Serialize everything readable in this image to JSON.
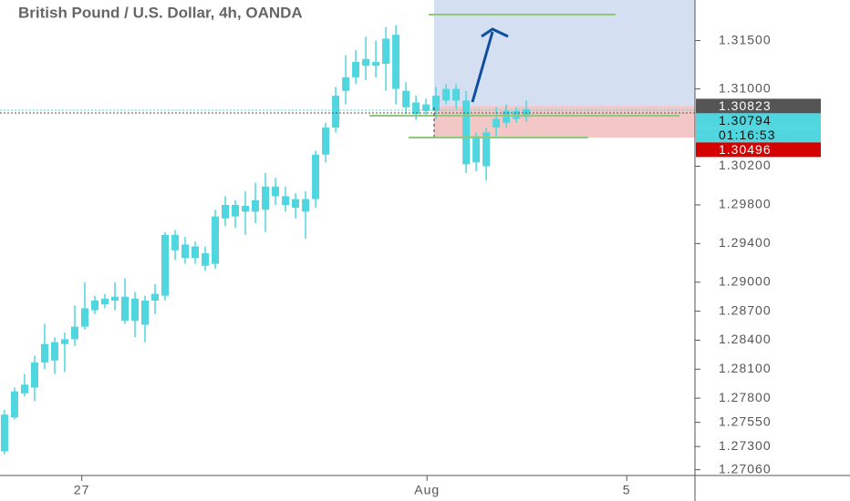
{
  "chart_data": {
    "type": "candlestick",
    "title": "British Pound / U.S. Dollar, 4h, OANDA",
    "x": [
      0,
      1,
      2,
      3,
      4,
      5,
      6,
      7,
      8,
      9,
      10,
      11,
      12,
      13,
      14,
      15,
      16,
      17,
      18,
      19,
      20,
      21,
      22,
      23,
      24,
      25,
      26,
      27,
      28,
      29,
      30,
      31,
      32,
      33,
      34,
      35,
      36,
      37,
      38,
      39,
      40,
      41,
      42,
      43,
      44,
      45,
      46,
      47,
      48,
      49,
      50,
      51,
      52
    ],
    "open": [
      1.2725,
      1.276,
      1.2785,
      1.2791,
      1.2817,
      1.2838,
      1.2836,
      1.2841,
      1.2854,
      1.2871,
      1.2877,
      1.2881,
      1.2885,
      1.286,
      1.2881,
      1.2881,
      1.2886,
      1.2949,
      1.2939,
      1.2925,
      1.293,
      1.2919,
      1.2966,
      1.298,
      1.2973,
      1.2973,
      1.2975,
      1.2999,
      1.2989,
      1.2977,
      1.2986,
      1.2986,
      1.3032,
      1.306,
      1.3098,
      1.3112,
      1.3131,
      1.3124,
      1.3126,
      1.3156,
      1.3098,
      1.3086,
      1.3077,
      1.3077,
      1.3088,
      1.31,
      1.3088,
      1.3024,
      1.302,
      1.306,
      1.3065,
      1.3077,
      1.3071
    ],
    "high": [
      1.2768,
      1.2791,
      1.2805,
      1.2824,
      1.2857,
      1.2843,
      1.2848,
      1.2876,
      1.29,
      1.2886,
      1.2888,
      1.29,
      1.2904,
      1.289,
      1.2886,
      1.2898,
      1.2952,
      1.2954,
      1.2947,
      1.2942,
      1.2937,
      1.2975,
      1.2989,
      1.2985,
      1.2994,
      1.3003,
      1.3013,
      1.3008,
      1.2999,
      1.2992,
      1.2994,
      1.3036,
      1.3065,
      1.3102,
      1.3135,
      1.314,
      1.3154,
      1.315,
      1.3164,
      1.3166,
      1.3107,
      1.3093,
      1.309,
      1.3102,
      1.3105,
      1.3105,
      1.3098,
      1.3055,
      1.306,
      1.3081,
      1.3084,
      1.3081,
      1.3088
    ],
    "low": [
      1.2722,
      1.2758,
      1.2782,
      1.2777,
      1.281,
      1.2805,
      1.2807,
      1.2834,
      1.2851,
      1.2867,
      1.2873,
      1.2871,
      1.2857,
      1.2843,
      1.2838,
      1.2867,
      1.2881,
      1.2923,
      1.2919,
      1.2919,
      1.2912,
      1.2914,
      1.2958,
      1.2956,
      1.2949,
      1.2961,
      1.2952,
      1.298,
      1.2973,
      1.2966,
      1.2945,
      1.2977,
      1.3024,
      1.3055,
      1.3084,
      1.3105,
      1.3109,
      1.3112,
      1.3098,
      1.3084,
      1.3074,
      1.3068,
      1.3071,
      1.3069,
      1.3084,
      1.3079,
      1.3013,
      1.3015,
      1.3005,
      1.3051,
      1.306,
      1.3065,
      1.3066
    ],
    "close": [
      1.2763,
      1.2787,
      1.2794,
      1.2817,
      1.2836,
      1.2819,
      1.2841,
      1.2854,
      1.2873,
      1.2881,
      1.2883,
      1.2885,
      1.286,
      1.2883,
      1.2856,
      1.2888,
      1.2949,
      1.2933,
      1.2925,
      1.2937,
      1.2917,
      1.2968,
      1.298,
      1.2968,
      1.2979,
      1.2985,
      1.2999,
      1.2989,
      1.298,
      1.2986,
      1.2973,
      1.3032,
      1.306,
      1.3093,
      1.3112,
      1.3128,
      1.3124,
      1.3128,
      1.3152,
      1.31,
      1.3081,
      1.3074,
      1.3084,
      1.3093,
      1.31,
      1.3088,
      1.3022,
      1.3051,
      1.3055,
      1.3069,
      1.3077,
      1.3069,
      1.3079
    ],
    "color": "#4fd6df",
    "xlim": [
      -0.45,
      68.8
    ],
    "xticks": [
      {
        "value": 7.7,
        "label": "27"
      },
      {
        "value": 42.1,
        "label": "Aug"
      },
      {
        "value": 62,
        "label": "5"
      }
    ],
    "ylim": [
      1.27,
      1.3192
    ],
    "yticks": [
      {
        "value": 1.315,
        "label": "1.31500"
      },
      {
        "value": 1.31,
        "label": "1.31000"
      },
      {
        "value": 1.302,
        "label": "1.30200"
      },
      {
        "value": 1.298,
        "label": "1.29800"
      },
      {
        "value": 1.294,
        "label": "1.29400"
      },
      {
        "value": 1.29,
        "label": "1.29000"
      },
      {
        "value": 1.287,
        "label": "1.28700"
      },
      {
        "value": 1.284,
        "label": "1.28400"
      },
      {
        "value": 1.281,
        "label": "1.28100"
      },
      {
        "value": 1.278,
        "label": "1.27800"
      },
      {
        "value": 1.2755,
        "label": "1.27550"
      },
      {
        "value": 1.273,
        "label": "1.27300"
      },
      {
        "value": 1.2706,
        "label": "1.27060"
      }
    ],
    "price_labels": [
      {
        "value": 1.30823,
        "color": "#555555"
      },
      {
        "value": 1.30794,
        "color": "#4fd6df"
      },
      {
        "value": 1.30496,
        "color": "#d50000"
      }
    ],
    "countdown": "01:16:53"
  }
}
